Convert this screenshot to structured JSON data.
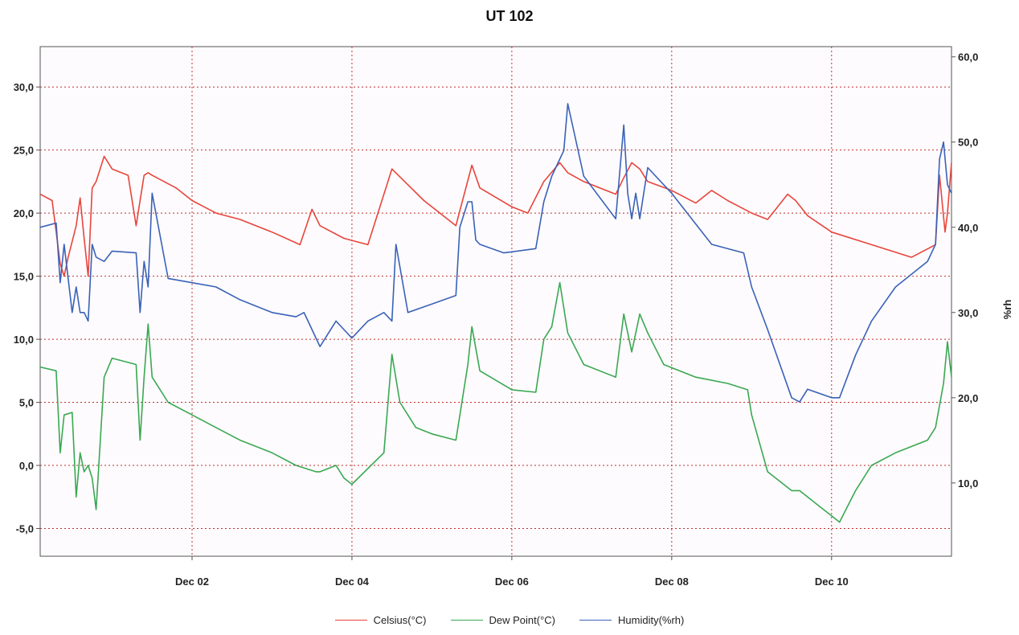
{
  "chart_data": {
    "type": "line",
    "title": "UT 102",
    "xlabel": "",
    "ylabel_left": "",
    "ylabel_right": "%rh",
    "x_tick_labels": [
      "Dec 02",
      "Dec 04",
      "Dec 06",
      "Dec 08",
      "Dec 10"
    ],
    "x_tick_values": [
      2,
      4,
      6,
      8,
      10
    ],
    "xlim": [
      0.1,
      11.5
    ],
    "y_left": {
      "lim": [
        -7.2,
        33.2
      ],
      "ticks": [
        -5,
        0,
        5,
        10,
        15,
        20,
        25,
        30
      ],
      "tick_labels": [
        "-5,0",
        "0,0",
        "5,0",
        "10,0",
        "15,0",
        "20,0",
        "25,0",
        "30,0"
      ]
    },
    "y_right": {
      "lim": [
        1.4,
        61.2
      ],
      "ticks": [
        10,
        20,
        30,
        40,
        50,
        60
      ],
      "tick_labels": [
        "10,0",
        "20,0",
        "30,0",
        "40,0",
        "50,0",
        "60,0"
      ]
    },
    "grid": true,
    "legend_position": "bottom-center",
    "series": [
      {
        "name": "Celsius(°C)",
        "color": "#e8453c",
        "axis": "left",
        "x": [
          0.1,
          0.25,
          0.35,
          0.4,
          0.45,
          0.55,
          0.6,
          0.65,
          0.7,
          0.75,
          0.8,
          0.85,
          0.9,
          1.0,
          1.2,
          1.3,
          1.35,
          1.4,
          1.45,
          1.5,
          1.8,
          2.0,
          2.3,
          2.6,
          3.0,
          3.35,
          3.5,
          3.6,
          3.9,
          4.2,
          4.5,
          4.9,
          5.3,
          5.5,
          5.6,
          6.0,
          6.2,
          6.4,
          6.6,
          6.7,
          6.9,
          7.3,
          7.4,
          7.5,
          7.6,
          7.7,
          8.0,
          8.3,
          8.5,
          8.7,
          9.0,
          9.2,
          9.45,
          9.55,
          9.7,
          10.0,
          10.5,
          11.0,
          11.3,
          11.35,
          11.42,
          11.45,
          11.5
        ],
        "y": [
          21.5,
          21,
          16,
          15,
          16.5,
          19,
          21.2,
          18,
          15,
          22,
          22.5,
          23.5,
          24.5,
          23.5,
          23,
          19,
          21,
          23,
          23.2,
          23,
          22,
          21,
          20,
          19.5,
          18.5,
          17.5,
          20.3,
          19,
          18,
          17.5,
          23.5,
          21,
          19,
          23.8,
          22,
          20.5,
          20,
          22.5,
          24,
          23.2,
          22.5,
          21.5,
          22.8,
          24,
          23.5,
          22.5,
          21.8,
          20.8,
          21.8,
          21,
          20,
          19.5,
          21.5,
          21,
          19.8,
          18.5,
          17.5,
          16.5,
          17.5,
          23,
          18.5,
          20,
          24
        ]
      },
      {
        "name": "Dew Point(°C)",
        "color": "#3aa852",
        "axis": "left",
        "x": [
          0.1,
          0.3,
          0.35,
          0.4,
          0.5,
          0.55,
          0.6,
          0.65,
          0.7,
          0.75,
          0.8,
          0.9,
          1.0,
          1.3,
          1.35,
          1.4,
          1.45,
          1.5,
          1.7,
          2.0,
          2.3,
          2.6,
          3.0,
          3.3,
          3.55,
          3.6,
          3.8,
          3.9,
          4.0,
          4.4,
          4.5,
          4.6,
          4.8,
          5.0,
          5.3,
          5.45,
          5.5,
          5.6,
          6.0,
          6.3,
          6.4,
          6.5,
          6.6,
          6.7,
          6.9,
          7.3,
          7.4,
          7.5,
          7.6,
          7.7,
          7.9,
          8.3,
          8.7,
          8.95,
          9.0,
          9.2,
          9.5,
          9.6,
          9.8,
          10.0,
          10.1,
          10.3,
          10.5,
          10.8,
          11.2,
          11.3,
          11.4,
          11.45,
          11.5
        ],
        "y": [
          7.8,
          7.5,
          1,
          4,
          4.2,
          -2.5,
          1,
          -0.5,
          0,
          -1,
          -3.5,
          7,
          8.5,
          8,
          2,
          7,
          11.2,
          7,
          5,
          4,
          3,
          2,
          1,
          0,
          -0.5,
          -0.5,
          0,
          -1,
          -1.5,
          1,
          8.8,
          5,
          3,
          2.5,
          2,
          8,
          11,
          7.5,
          6,
          5.8,
          10,
          11,
          14.5,
          10.5,
          8,
          7,
          12,
          9,
          12,
          10.5,
          8,
          7,
          6.5,
          6,
          4,
          -0.5,
          -2,
          -2,
          -3,
          -4,
          -4.5,
          -2,
          0,
          1,
          2,
          3,
          6.5,
          9.8,
          7
        ]
      },
      {
        "name": "Humidity(%rh)",
        "color": "#3a62b8",
        "axis": "right",
        "x": [
          0.1,
          0.3,
          0.35,
          0.4,
          0.45,
          0.5,
          0.55,
          0.6,
          0.65,
          0.7,
          0.75,
          0.8,
          0.9,
          1.0,
          1.3,
          1.35,
          1.4,
          1.45,
          1.5,
          1.7,
          2.0,
          2.3,
          2.6,
          3.0,
          3.3,
          3.4,
          3.55,
          3.6,
          3.8,
          3.9,
          4.0,
          4.2,
          4.4,
          4.5,
          4.55,
          4.7,
          5.0,
          5.3,
          5.35,
          5.45,
          5.5,
          5.55,
          5.6,
          5.9,
          6.3,
          6.4,
          6.5,
          6.55,
          6.6,
          6.65,
          6.7,
          6.9,
          7.3,
          7.4,
          7.45,
          7.5,
          7.55,
          7.6,
          7.7,
          8.0,
          8.5,
          8.9,
          9.0,
          9.2,
          9.5,
          9.6,
          9.7,
          10.0,
          10.1,
          10.3,
          10.5,
          10.8,
          11.2,
          11.3,
          11.35,
          11.4,
          11.45,
          11.5
        ],
        "y": [
          40,
          40.5,
          33.5,
          38,
          34,
          30,
          33,
          30,
          30,
          29,
          38,
          36.5,
          36,
          37.2,
          37,
          30,
          36,
          33,
          44,
          34,
          33.5,
          33,
          31.5,
          30,
          29.5,
          30,
          27,
          26,
          29,
          28,
          27,
          29,
          30,
          29,
          38,
          30,
          31,
          32,
          40,
          43,
          43,
          38.5,
          38,
          37,
          37.5,
          43,
          46,
          47,
          48,
          49,
          54.5,
          46,
          41,
          52,
          44,
          41,
          44,
          41,
          47,
          44,
          38,
          37,
          33,
          28,
          20,
          19.5,
          21,
          20,
          20,
          25,
          29,
          33,
          36,
          38,
          48,
          50,
          45,
          44
        ]
      }
    ]
  }
}
